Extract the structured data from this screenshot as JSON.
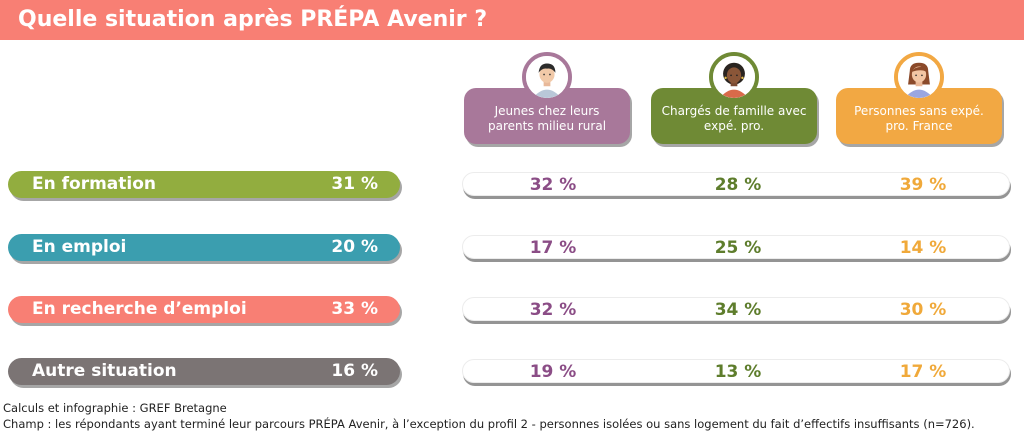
{
  "title": "Quelle situation après PRÉPA Avenir ?",
  "colors": {
    "title_bar": "#f87f74",
    "profile1": "#a8789a",
    "profile2": "#6f8a35",
    "profile3": "#f2a843",
    "value1": "#8b4d86",
    "value2": "#5e7d2c",
    "value3": "#f0a93a"
  },
  "profiles": [
    {
      "label": "Jeunes chez leurs parents milieu rural",
      "icon": "young-person-avatar-icon"
    },
    {
      "label": "Chargés de famille avec expé. pro.",
      "icon": "parent-avatar-icon"
    },
    {
      "label": "Personnes sans expé. pro. France",
      "icon": "woman-avatar-icon"
    }
  ],
  "rows": [
    {
      "label": "En formation",
      "total": "31 %",
      "color": "#92ad3f",
      "values": [
        "32 %",
        "28 %",
        "39 %"
      ]
    },
    {
      "label": "En emploi",
      "total": "20 %",
      "color": "#3b9eaf",
      "values": [
        "17 %",
        "25 %",
        "14 %"
      ]
    },
    {
      "label": "En recherche d’emploi",
      "total": "33 %",
      "color": "#f87f74",
      "values": [
        "32 %",
        "34 %",
        "30 %"
      ]
    },
    {
      "label": "Autre situation",
      "total": "16 %",
      "color": "#7b7474",
      "values": [
        "19 %",
        "13 %",
        "17 %"
      ]
    }
  ],
  "footnotes": [
    "Calculs et infographie : GREF Bretagne",
    "Champ : les répondants ayant terminé leur parcours PRÉPA Avenir, à l’exception du profil 2 - personnes isolées ou sans logement du fait d’effectifs insuffisants (n=726)."
  ],
  "chart_data": {
    "type": "table",
    "title": "Quelle situation après PRÉPA Avenir ?",
    "categories": [
      "En formation",
      "En emploi",
      "En recherche d’emploi",
      "Autre situation"
    ],
    "totals": [
      31,
      20,
      33,
      16
    ],
    "series": [
      {
        "name": "Jeunes chez leurs parents milieu rural",
        "values": [
          32,
          17,
          32,
          19
        ]
      },
      {
        "name": "Chargés de famille avec expé. pro.",
        "values": [
          28,
          25,
          34,
          13
        ]
      },
      {
        "name": "Personnes sans expé. pro. France",
        "values": [
          39,
          14,
          30,
          17
        ]
      }
    ],
    "unit": "%"
  }
}
